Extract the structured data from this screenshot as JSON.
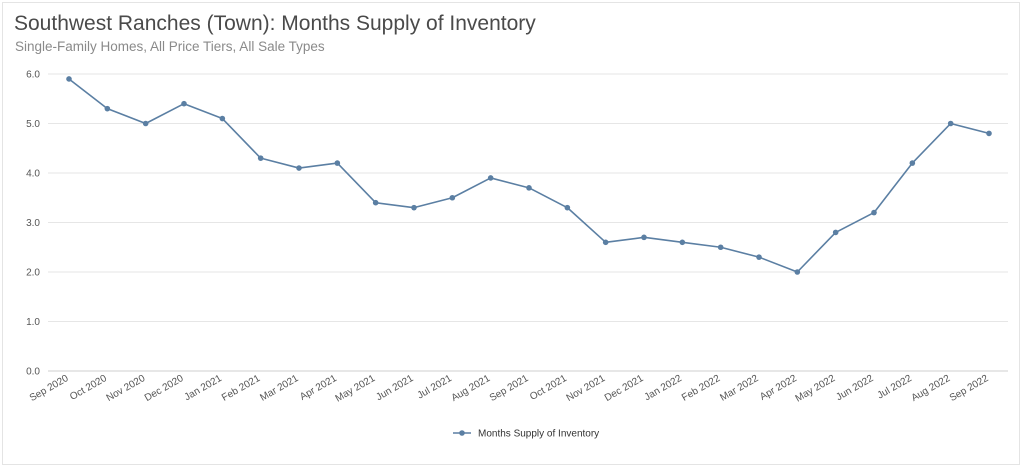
{
  "header": {
    "title": "Southwest Ranches (Town): Months Supply of Inventory",
    "subtitle": "Single-Family Homes, All Price Tiers, All Sale Types"
  },
  "chart_data": {
    "type": "line",
    "title": "Southwest Ranches (Town): Months Supply of Inventory",
    "subtitle": "Single-Family Homes, All Price Tiers, All Sale Types",
    "xlabel": "",
    "ylabel": "",
    "ylim": [
      0,
      6
    ],
    "yticks": [
      "0.0",
      "1.0",
      "2.0",
      "3.0",
      "4.0",
      "5.0",
      "6.0"
    ],
    "grid": true,
    "legend_position": "bottom-center",
    "categories": [
      "Sep 2020",
      "Oct 2020",
      "Nov 2020",
      "Dec 2020",
      "Jan 2021",
      "Feb 2021",
      "Mar 2021",
      "Apr 2021",
      "May 2021",
      "Jun 2021",
      "Jul 2021",
      "Aug 2021",
      "Sep 2021",
      "Oct 2021",
      "Nov 2021",
      "Dec 2021",
      "Jan 2022",
      "Feb 2022",
      "Mar 2022",
      "Apr 2022",
      "May 2022",
      "Jun 2022",
      "Jul 2022",
      "Aug 2022",
      "Sep 2022"
    ],
    "series": [
      {
        "name": "Months Supply of Inventory",
        "color": "#5b7fa3",
        "values": [
          5.9,
          5.3,
          5.0,
          5.4,
          5.1,
          4.3,
          4.1,
          4.2,
          3.4,
          3.3,
          3.5,
          3.9,
          3.7,
          3.3,
          2.6,
          2.7,
          2.6,
          2.5,
          2.3,
          2.0,
          2.8,
          3.2,
          4.2,
          5.0,
          4.8
        ]
      }
    ]
  }
}
